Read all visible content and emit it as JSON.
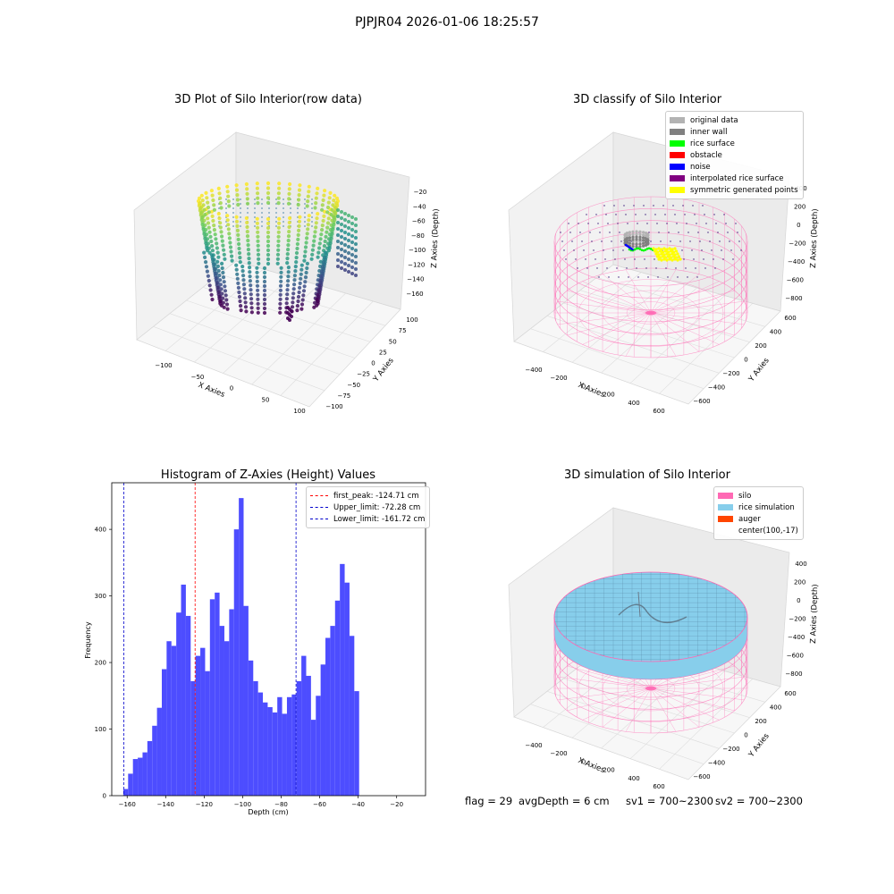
{
  "figure_title": "PJPJR04 2026-01-06 18:25:57",
  "colors": {
    "hist_bar": "#4d4dff",
    "first_peak_line": "#ff0000",
    "limit_line": "#0000cc",
    "silo_wire": "#ff69b4",
    "rice_surface_fill": "#87ceeb",
    "viridis_low": "#440154",
    "viridis_mid": "#21918c",
    "viridis_high": "#fde725"
  },
  "status": {
    "flag": "flag = 29",
    "avg_depth": "avgDepth = 6 cm",
    "sv1": "sv1 = 700~2300",
    "sv2": "sv2 = 700~2300"
  },
  "chart_data": [
    {
      "type": "scatter",
      "subtype": "3d",
      "title": "3D Plot of Silo Interior(row data)",
      "xlabel": "X Axies",
      "ylabel": "Y Axies",
      "zlabel": "Z Axies (Depth)",
      "x_ticks": [
        "−100",
        "−50",
        "0",
        "50",
        "100"
      ],
      "y_ticks": [
        "−100",
        "−75",
        "−50",
        "−25",
        "0",
        "25",
        "50",
        "75",
        "100"
      ],
      "z_ticks": [
        "−20",
        "−40",
        "−60",
        "−80",
        "−100",
        "−120",
        "−140",
        "−160"
      ],
      "xlim": [
        -130,
        110
      ],
      "ylim": [
        -100,
        100
      ],
      "zlim": [
        -170,
        -10
      ],
      "colormap": "viridis"
    },
    {
      "type": "scatter",
      "subtype": "3d",
      "title": "3D classify of Silo Interior",
      "xlabel": "X Axies",
      "ylabel": "Y Axies",
      "zlabel": "Z Axies (Depth)",
      "x_ticks": [
        "−400",
        "−200",
        "0",
        "200",
        "400",
        "600"
      ],
      "y_ticks": [
        "−600",
        "−400",
        "−200",
        "0",
        "200",
        "400",
        "600"
      ],
      "z_ticks": [
        "400",
        "200",
        "0",
        "−200",
        "−400",
        "−600",
        "−800"
      ],
      "legend": [
        {
          "label": "original data",
          "color": "#b3b3b3"
        },
        {
          "label": "inner wall",
          "color": "#808080"
        },
        {
          "label": "rice surface",
          "color": "#00ff00"
        },
        {
          "label": "obstacle",
          "color": "#ff0000"
        },
        {
          "label": "noise",
          "color": "#0000ff"
        },
        {
          "label": "interpolated rice surface",
          "color": "#800080"
        },
        {
          "label": "symmetric generated points",
          "color": "#ffff00"
        }
      ],
      "legend_position": "top-right"
    },
    {
      "type": "bar",
      "subtype": "histogram",
      "title": "Histogram of Z-Axies (Height) Values",
      "xlabel": "Depth (cm)",
      "ylabel": "Frequency",
      "xlim": [
        -168,
        -5
      ],
      "ylim": [
        0,
        470
      ],
      "x_ticks": [
        -160,
        -140,
        -120,
        -100,
        -80,
        -60,
        -40,
        -20
      ],
      "x_tick_labels": [
        "−160",
        "−140",
        "−120",
        "−100",
        "−80",
        "−60",
        "−40",
        "−20"
      ],
      "y_ticks": [
        0,
        100,
        200,
        300,
        400
      ],
      "y_tick_labels": [
        "0",
        "100",
        "200",
        "300",
        "400"
      ],
      "bin_start": -162,
      "bin_width": 2.5,
      "values": [
        10,
        33,
        55,
        57,
        65,
        82,
        105,
        132,
        190,
        232,
        225,
        275,
        317,
        270,
        172,
        210,
        222,
        187,
        295,
        305,
        255,
        232,
        280,
        400,
        447,
        285,
        203,
        172,
        155,
        140,
        133,
        125,
        148,
        123,
        148,
        152,
        172,
        210,
        180,
        114,
        150,
        197,
        237,
        255,
        293,
        348,
        320,
        240,
        157
      ],
      "vlines": [
        {
          "name": "first_peak: -124.71 cm",
          "x": -124.71,
          "color": "#ff0000"
        },
        {
          "name": "Upper_limit: -72.28 cm",
          "x": -72.28,
          "color": "#0000cc"
        },
        {
          "name": "Lower_limit: -161.72 cm",
          "x": -161.72,
          "color": "#0000cc"
        }
      ],
      "legend_position": "top-right"
    },
    {
      "type": "surface",
      "subtype": "3d",
      "title": "3D simulation of Silo Interior",
      "xlabel": "X Axies",
      "ylabel": "Y Axies",
      "zlabel": "Z Axies (Depth)",
      "x_ticks": [
        "−400",
        "−200",
        "0",
        "200",
        "400",
        "600"
      ],
      "y_ticks": [
        "−600",
        "−400",
        "−200",
        "0",
        "200",
        "400",
        "600"
      ],
      "z_ticks": [
        "400",
        "200",
        "0",
        "−200",
        "−400",
        "−600",
        "−800"
      ],
      "legend": [
        {
          "label": "silo",
          "color": "#ff69b4"
        },
        {
          "label": "rice simulation",
          "color": "#87ceeb"
        },
        {
          "label": "auger",
          "color": "#ff4500"
        },
        {
          "label": "center(100,-17)",
          "color": ""
        }
      ],
      "legend_position": "top-right"
    }
  ]
}
